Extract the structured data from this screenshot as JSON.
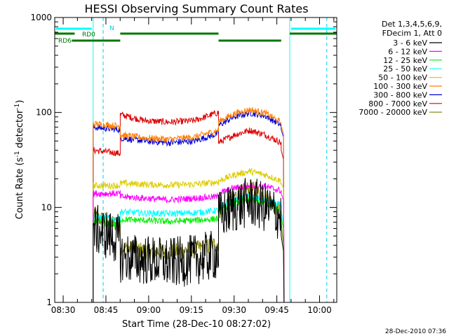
{
  "chart_data": {
    "type": "line",
    "title": "HESSI Observing Summary Count Rates",
    "xlabel": "Start Time (28-Dec-10 08:27:02)",
    "ylabel": "Count Rate (s",
    "ylabel_sup1": "-1",
    "ylabel_mid": " detector",
    "ylabel_sup2": "-1",
    "ylabel_end": ")",
    "y_scale": "log",
    "ylim": [
      1,
      1000
    ],
    "xlim_minutes": [
      0,
      99
    ],
    "x_ticks": [
      {
        "minutes": 2.97,
        "label": "08:30"
      },
      {
        "minutes": 17.97,
        "label": "08:45"
      },
      {
        "minutes": 32.97,
        "label": "09:00"
      },
      {
        "minutes": 47.97,
        "label": "09:15"
      },
      {
        "minutes": 62.97,
        "label": "09:30"
      },
      {
        "minutes": 77.97,
        "label": "09:45"
      },
      {
        "minutes": 92.97,
        "label": "10:00"
      }
    ],
    "y_ticks": [
      {
        "value": 1,
        "label": "1"
      },
      {
        "value": 10,
        "label": "10"
      },
      {
        "value": 100,
        "label": "100"
      },
      {
        "value": 1000,
        "label": "1000"
      }
    ],
    "grid": false,
    "legend_position": "right",
    "legend_header": [
      "Det 1,3,4,5,6,9,",
      "FDecim 1, Att 0"
    ],
    "night_intervals_minutes": [
      [
        0,
        13.5
      ],
      [
        82.5,
        99
      ]
    ],
    "saa_markers_minutes": [
      17.0,
      95.5
    ],
    "saa_marker_label": "N",
    "attenuator_bars": [
      {
        "label": "RD0",
        "level": "upper",
        "segments": [
          [
            0,
            7.0
          ],
          [
            23.0,
            57.5
          ],
          [
            82.5,
            99
          ]
        ]
      },
      {
        "label": "RD6",
        "level": "lower",
        "segments": [
          [
            6.0,
            23.0
          ],
          [
            57.5,
            79.5
          ]
        ]
      }
    ],
    "segment_boundaries_minutes": [
      13.5,
      23.0,
      57.5,
      79.5
    ],
    "series": [
      {
        "name": "3 - 6 keV",
        "color": "#000000",
        "values_by_segment": [
          [
            6,
            4.5
          ],
          [
            3.0,
            2.8,
            2.6,
            2.8,
            3.2
          ],
          [
            8,
            10,
            11.5,
            10,
            8
          ],
          [
            5,
            3.5
          ]
        ]
      },
      {
        "name": "6 - 12 keV",
        "color": "#ff00ff",
        "values_by_segment": [
          [
            14,
            14
          ],
          [
            13,
            12.5,
            12.0,
            12.5,
            13
          ],
          [
            14,
            16,
            17,
            16.5,
            15
          ],
          [
            14,
            12
          ]
        ]
      },
      {
        "name": "12 - 25 keV",
        "color": "#00ee00",
        "values_by_segment": [
          [
            7,
            6.5
          ],
          [
            7.5,
            7.3,
            7.1,
            7.3,
            7.6
          ],
          [
            9,
            11,
            12,
            11,
            9.5
          ],
          [
            8,
            6
          ]
        ]
      },
      {
        "name": "25 - 50 keV",
        "color": "#00ffff",
        "values_by_segment": [
          [
            8,
            7.5
          ],
          [
            9.0,
            8.7,
            8.6,
            8.8,
            9.3
          ],
          [
            10,
            12,
            13,
            12,
            10.5
          ],
          [
            9,
            7
          ]
        ]
      },
      {
        "name": "50 - 100 keV",
        "color": "#ddcc00",
        "values_by_segment": [
          [
            17,
            17
          ],
          [
            18,
            17.5,
            17.2,
            17.5,
            18.5
          ],
          [
            19,
            22,
            24,
            22,
            19
          ],
          [
            18,
            16
          ]
        ]
      },
      {
        "name": "100 - 300 keV",
        "color": "#ff7f00",
        "values_by_segment": [
          [
            76,
            72
          ],
          [
            58,
            54,
            52,
            55,
            65
          ],
          [
            80,
            97,
            107,
            98,
            78
          ],
          [
            72,
            60
          ]
        ]
      },
      {
        "name": "300 - 800 keV",
        "color": "#0000dd",
        "values_by_segment": [
          [
            70,
            66
          ],
          [
            54,
            50,
            48,
            50,
            60
          ],
          [
            73,
            90,
            99,
            92,
            73
          ],
          [
            66,
            55
          ]
        ]
      },
      {
        "name": "800 - 7000 keV",
        "color": "#dd0000",
        "values_by_segment": [
          [
            40,
            37
          ],
          [
            95,
            82,
            79,
            82,
            100
          ],
          [
            48,
            58,
            65,
            58,
            48
          ],
          [
            40,
            32
          ]
        ]
      },
      {
        "name": "7000 - 20000 keV",
        "color": "#808000",
        "values_by_segment": [
          [
            8,
            6.5
          ],
          [
            3.8,
            3.5,
            3.4,
            3.6,
            4.2
          ],
          [
            9,
            13,
            16,
            13,
            9
          ],
          [
            7,
            4
          ]
        ]
      }
    ]
  },
  "footer_date": "28-Dec-2010 07:36"
}
